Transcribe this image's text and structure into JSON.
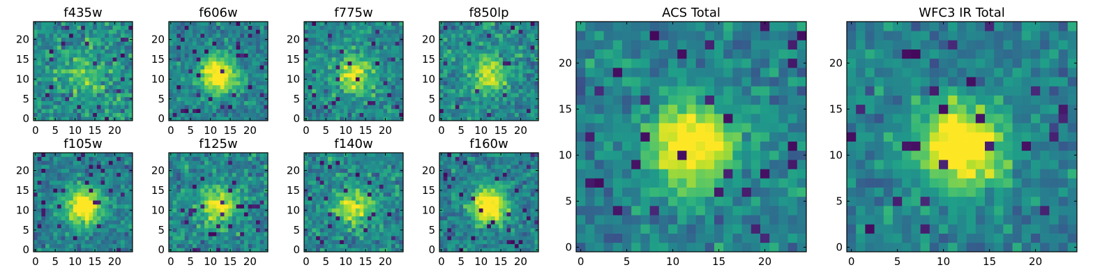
{
  "chart_data": [
    {
      "type": "heatmap",
      "title": "f435w",
      "x_ticks": [
        "0",
        "5",
        "10",
        "15",
        "20"
      ],
      "y_ticks": [
        "0",
        "5",
        "10",
        "15",
        "20"
      ],
      "xlim": [
        -0.5,
        24.5
      ],
      "ylim": [
        -0.5,
        24.5
      ],
      "grid_size": 25,
      "colormap": "viridis",
      "source_center": [
        13,
        11
      ],
      "source_strength": 0.25
    },
    {
      "type": "heatmap",
      "title": "f606w",
      "x_ticks": [
        "0",
        "5",
        "10",
        "15",
        "20"
      ],
      "y_ticks": [
        "0",
        "5",
        "10",
        "15",
        "20"
      ],
      "xlim": [
        -0.5,
        24.5
      ],
      "ylim": [
        -0.5,
        24.5
      ],
      "grid_size": 25,
      "colormap": "viridis",
      "source_center": [
        12,
        11
      ],
      "source_strength": 0.8
    },
    {
      "type": "heatmap",
      "title": "f775w",
      "x_ticks": [
        "0",
        "5",
        "10",
        "15",
        "20"
      ],
      "y_ticks": [
        "0",
        "5",
        "10",
        "15",
        "20"
      ],
      "xlim": [
        -0.5,
        24.5
      ],
      "ylim": [
        -0.5,
        24.5
      ],
      "grid_size": 25,
      "colormap": "viridis",
      "source_center": [
        12,
        11
      ],
      "source_strength": 0.55
    },
    {
      "type": "heatmap",
      "title": "f850lp",
      "x_ticks": [
        "0",
        "5",
        "10",
        "15",
        "20"
      ],
      "y_ticks": [
        "0",
        "5",
        "10",
        "15",
        "20"
      ],
      "xlim": [
        -0.5,
        24.5
      ],
      "ylim": [
        -0.5,
        24.5
      ],
      "grid_size": 25,
      "colormap": "viridis",
      "source_center": [
        12,
        11
      ],
      "source_strength": 0.5
    },
    {
      "type": "heatmap",
      "title": "f105w",
      "x_ticks": [
        "0",
        "5",
        "10",
        "15",
        "20"
      ],
      "y_ticks": [
        "0",
        "5",
        "10",
        "15",
        "20"
      ],
      "xlim": [
        -0.5,
        24.5
      ],
      "ylim": [
        -0.5,
        24.5
      ],
      "grid_size": 25,
      "colormap": "viridis",
      "source_center": [
        12,
        11
      ],
      "source_strength": 0.8
    },
    {
      "type": "heatmap",
      "title": "f125w",
      "x_ticks": [
        "0",
        "5",
        "10",
        "15",
        "20"
      ],
      "y_ticks": [
        "0",
        "5",
        "10",
        "15",
        "20"
      ],
      "xlim": [
        -0.5,
        24.5
      ],
      "ylim": [
        -0.5,
        24.5
      ],
      "grid_size": 25,
      "colormap": "viridis",
      "source_center": [
        12,
        11
      ],
      "source_strength": 0.6
    },
    {
      "type": "heatmap",
      "title": "f140w",
      "x_ticks": [
        "0",
        "5",
        "10",
        "15",
        "20"
      ],
      "y_ticks": [
        "0",
        "5",
        "10",
        "15",
        "20"
      ],
      "xlim": [
        -0.5,
        24.5
      ],
      "ylim": [
        -0.5,
        24.5
      ],
      "grid_size": 25,
      "colormap": "viridis",
      "source_center": [
        12,
        11
      ],
      "source_strength": 0.55
    },
    {
      "type": "heatmap",
      "title": "f160w",
      "x_ticks": [
        "0",
        "5",
        "10",
        "15",
        "20"
      ],
      "y_ticks": [
        "0",
        "5",
        "10",
        "15",
        "20"
      ],
      "xlim": [
        -0.5,
        24.5
      ],
      "ylim": [
        -0.5,
        24.5
      ],
      "grid_size": 25,
      "colormap": "viridis",
      "source_center": [
        12,
        11
      ],
      "source_strength": 0.8
    },
    {
      "type": "heatmap",
      "title": "ACS Total",
      "x_ticks": [
        "0",
        "5",
        "10",
        "15",
        "20"
      ],
      "y_ticks": [
        "0",
        "5",
        "10",
        "15",
        "20"
      ],
      "xlim": [
        -0.5,
        24.5
      ],
      "ylim": [
        -0.5,
        24.5
      ],
      "grid_size": 25,
      "colormap": "viridis",
      "source_center": [
        12,
        11
      ],
      "source_strength": 0.8
    },
    {
      "type": "heatmap",
      "title": "WFC3 IR Total",
      "x_ticks": [
        "0",
        "5",
        "10",
        "15",
        "20"
      ],
      "y_ticks": [
        "0",
        "5",
        "10",
        "15",
        "20"
      ],
      "xlim": [
        -0.5,
        24.5
      ],
      "ylim": [
        -0.5,
        24.5
      ],
      "grid_size": 25,
      "colormap": "viridis",
      "source_center": [
        12,
        11
      ],
      "source_strength": 0.85
    }
  ]
}
